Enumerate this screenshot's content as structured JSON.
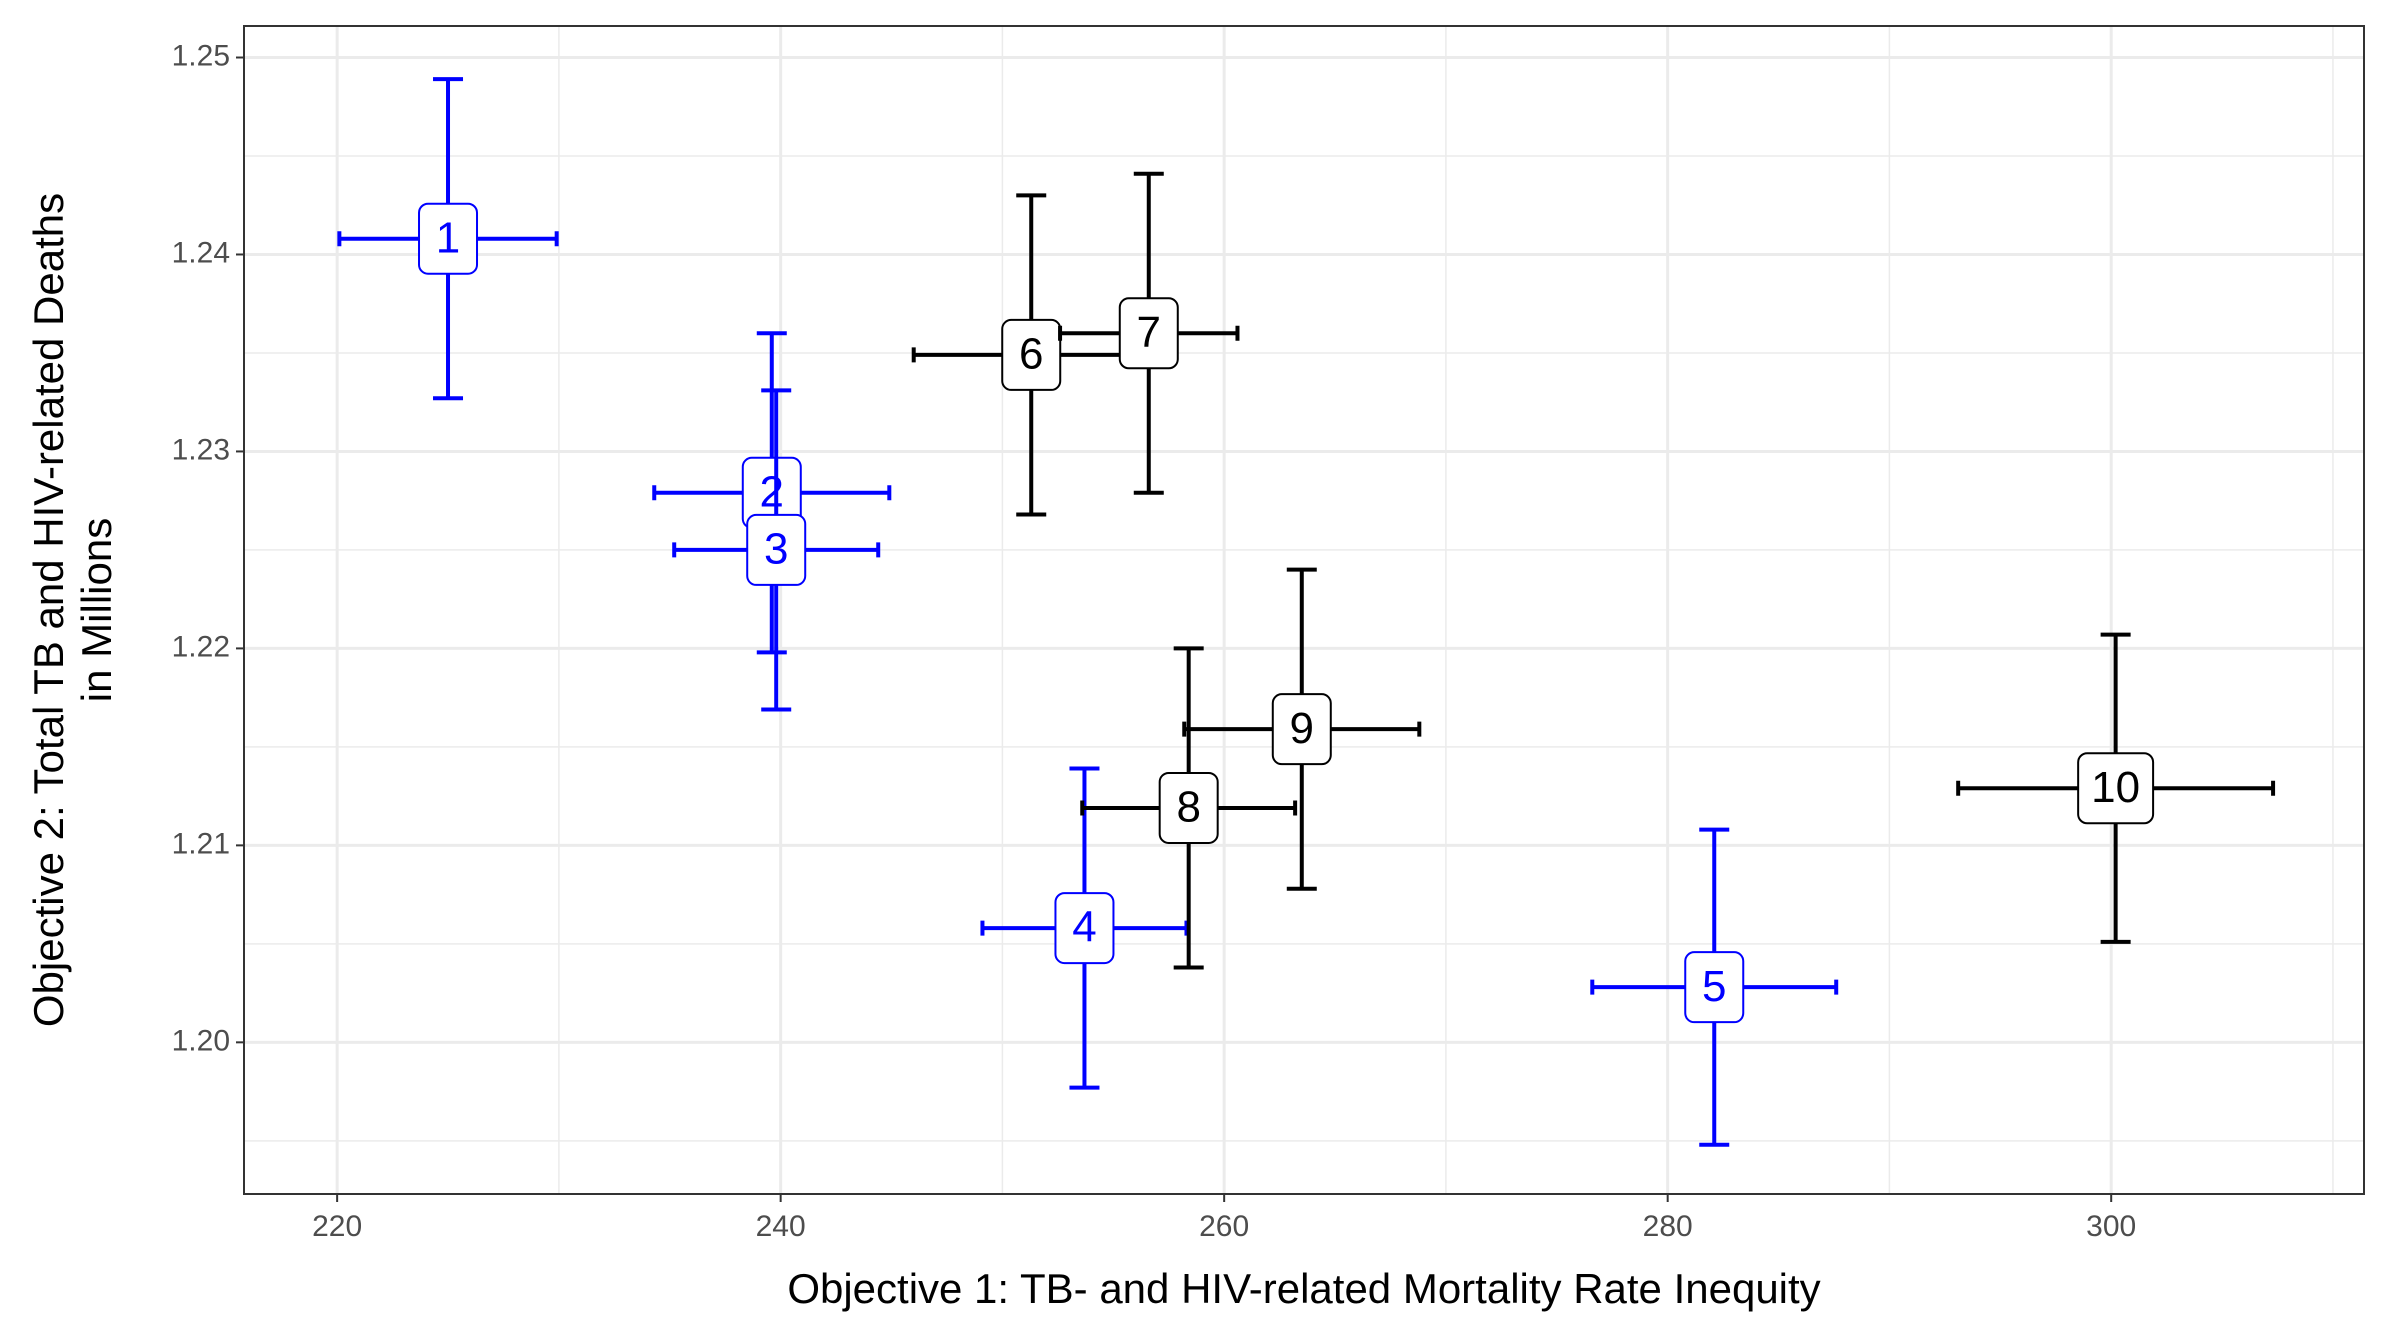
{
  "chart_data": {
    "type": "errorbar-scatter",
    "xlabel": "Objective 1: TB- and HIV-related Mortality Rate Inequity",
    "ylabel": [
      "Objective 2: Total TB and HIV-related Deaths",
      "in Millions"
    ],
    "xlim": [
      215.8,
      311.4
    ],
    "ylim": [
      1.1923,
      1.2516
    ],
    "xticks": [
      220,
      240,
      260,
      280,
      300
    ],
    "yticks": [
      {
        "value": 1.2,
        "label": "1.20"
      },
      1.21,
      1.22,
      1.23,
      1.24,
      1.25
    ],
    "grid": true,
    "points": [
      {
        "label": "1",
        "x": 225.0,
        "y": 1.2408,
        "xerr": 4.9,
        "yerr": 0.0081,
        "color": "#0000ff"
      },
      {
        "label": "2",
        "x": 239.6,
        "y": 1.2279,
        "xerr": 5.3,
        "yerr": 0.0081,
        "color": "#0000ff"
      },
      {
        "label": "3",
        "x": 239.8,
        "y": 1.225,
        "xerr": 4.6,
        "yerr": 0.0081,
        "color": "#0000ff"
      },
      {
        "label": "4",
        "x": 253.7,
        "y": 1.2058,
        "xerr": 4.6,
        "yerr": 0.0081,
        "color": "#0000ff"
      },
      {
        "label": "5",
        "x": 282.1,
        "y": 1.2028,
        "xerr": 5.5,
        "yerr": 0.008,
        "color": "#0000ff"
      },
      {
        "label": "6",
        "x": 251.3,
        "y": 1.2349,
        "xerr": 5.3,
        "yerr": 0.0081,
        "color": "#000000"
      },
      {
        "label": "7",
        "x": 256.6,
        "y": 1.236,
        "xerr": 4.0,
        "yerr": 0.0081,
        "color": "#000000"
      },
      {
        "label": "8",
        "x": 258.4,
        "y": 1.2119,
        "xerr": 4.8,
        "yerr": 0.0081,
        "color": "#000000"
      },
      {
        "label": "9",
        "x": 263.5,
        "y": 1.2159,
        "xerr": 5.3,
        "yerr": 0.0081,
        "color": "#000000"
      },
      {
        "label": "10",
        "x": 300.2,
        "y": 1.2129,
        "xerr": 7.1,
        "yerr": 0.0078,
        "color": "#000000"
      }
    ]
  }
}
